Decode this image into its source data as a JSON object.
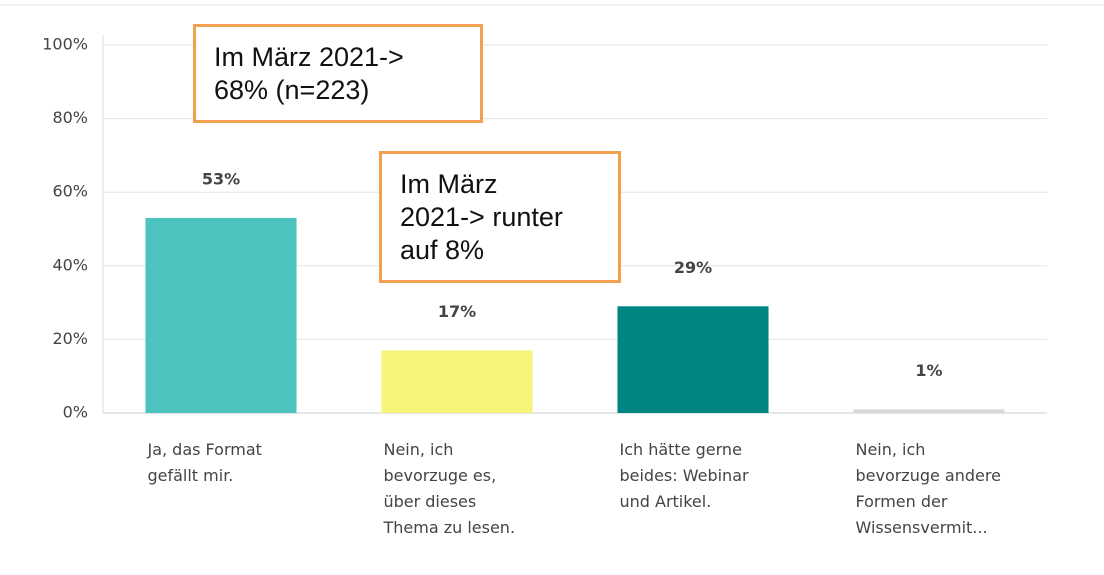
{
  "chart_data": {
    "type": "bar",
    "categories": [
      "Ja, das Format\ngefällt mir.",
      "Nein, ich\nbevorzuge es,\nüber dieses\nThema zu lesen.",
      "Ich hätte gerne\nbeides: Webinar\nund Artikel.",
      "Nein, ich\nbevorzuge andere\nFormen der\nWissensvermit..."
    ],
    "values": [
      53,
      17,
      29,
      1
    ],
    "value_labels": [
      "53%",
      "17%",
      "29%",
      "1%"
    ],
    "colors": [
      "#4dc3bf",
      "#f5f57a",
      "#008585",
      "#d9d9d9"
    ],
    "ylim": [
      0,
      100
    ],
    "yticks": [
      {
        "value": 0,
        "label": "0%"
      },
      {
        "value": 20,
        "label": "20%"
      },
      {
        "value": 40,
        "label": "40%"
      },
      {
        "value": 60,
        "label": "60%"
      },
      {
        "value": 80,
        "label": "80%"
      },
      {
        "value": 100,
        "label": "100%"
      }
    ],
    "grid": true,
    "annotations": [
      "Im März 2021->\n68% (n=223)",
      "Im März\n2021-> runter\nauf 8%"
    ]
  }
}
